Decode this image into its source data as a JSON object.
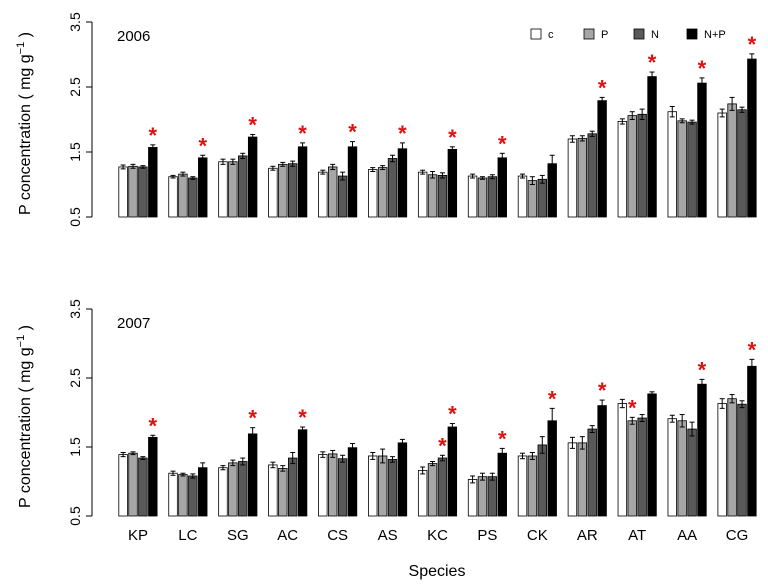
{
  "chart_data": {
    "type": "bar",
    "categories": [
      "KP",
      "LC",
      "SG",
      "AC",
      "CS",
      "AS",
      "KC",
      "PS",
      "CK",
      "AR",
      "AT",
      "AA",
      "CG"
    ],
    "xlabel": "Species",
    "ylabel_main": "P concentration ( mg g",
    "ylabel_sup": "−1",
    "ylabel_end": " )",
    "ylim": [
      0.5,
      3.5
    ],
    "yticks": [
      0.5,
      1.5,
      2.5,
      3.5
    ],
    "ytick_labels": [
      "0.5",
      "1.5",
      "2.5",
      "3.5"
    ],
    "legend": [
      {
        "name": "c",
        "color": "#ffffff"
      },
      {
        "name": "P",
        "color": "#a6a6a6"
      },
      {
        "name": "N",
        "color": "#595959"
      },
      {
        "name": "N+P",
        "color": "#000000"
      }
    ],
    "significance_marker": "*",
    "significance_color": "#e01010",
    "panels": [
      {
        "year": "2006",
        "show_legend": true,
        "series": [
          {
            "name": "c",
            "values": [
              1.27,
              1.12,
              1.35,
              1.25,
              1.19,
              1.23,
              1.19,
              1.13,
              1.13,
              1.7,
              1.97,
              2.12,
              2.1
            ],
            "errors": [
              0.03,
              0.02,
              0.04,
              0.03,
              0.03,
              0.03,
              0.03,
              0.03,
              0.03,
              0.05,
              0.04,
              0.08,
              0.06
            ],
            "sig": [
              false,
              false,
              false,
              false,
              false,
              false,
              false,
              false,
              false,
              false,
              false,
              false,
              false
            ]
          },
          {
            "name": "P",
            "values": [
              1.28,
              1.16,
              1.35,
              1.31,
              1.27,
              1.26,
              1.15,
              1.1,
              1.06,
              1.71,
              2.06,
              1.98,
              2.24
            ],
            "errors": [
              0.03,
              0.03,
              0.04,
              0.03,
              0.04,
              0.03,
              0.05,
              0.02,
              0.06,
              0.04,
              0.06,
              0.03,
              0.1
            ],
            "sig": [
              false,
              false,
              false,
              false,
              false,
              false,
              false,
              false,
              false,
              false,
              false,
              false,
              false
            ]
          },
          {
            "name": "N",
            "values": [
              1.27,
              1.1,
              1.44,
              1.32,
              1.13,
              1.4,
              1.14,
              1.12,
              1.08,
              1.78,
              2.08,
              1.96,
              2.15
            ],
            "errors": [
              0.02,
              0.02,
              0.04,
              0.04,
              0.06,
              0.05,
              0.04,
              0.03,
              0.06,
              0.04,
              0.08,
              0.03,
              0.04
            ],
            "sig": [
              false,
              false,
              false,
              false,
              false,
              false,
              false,
              false,
              false,
              false,
              false,
              false,
              false
            ]
          },
          {
            "name": "N+P",
            "values": [
              1.57,
              1.41,
              1.73,
              1.58,
              1.58,
              1.55,
              1.54,
              1.41,
              1.32,
              2.29,
              2.66,
              2.56,
              2.93
            ],
            "errors": [
              0.04,
              0.04,
              0.04,
              0.06,
              0.08,
              0.09,
              0.04,
              0.07,
              0.13,
              0.05,
              0.07,
              0.08,
              0.08
            ],
            "sig": [
              true,
              true,
              true,
              true,
              true,
              true,
              true,
              true,
              false,
              true,
              true,
              true,
              true
            ]
          }
        ]
      },
      {
        "year": "2007",
        "show_legend": false,
        "series": [
          {
            "name": "c",
            "values": [
              1.39,
              1.12,
              1.2,
              1.24,
              1.39,
              1.37,
              1.16,
              1.03,
              1.37,
              1.56,
              2.13,
              1.91,
              2.13
            ],
            "errors": [
              0.03,
              0.03,
              0.03,
              0.04,
              0.04,
              0.05,
              0.05,
              0.05,
              0.04,
              0.08,
              0.06,
              0.05,
              0.07
            ],
            "sig": [
              false,
              false,
              false,
              false,
              false,
              false,
              false,
              false,
              false,
              false,
              false,
              false,
              false
            ]
          },
          {
            "name": "P",
            "values": [
              1.41,
              1.1,
              1.27,
              1.19,
              1.4,
              1.37,
              1.26,
              1.07,
              1.37,
              1.56,
              1.88,
              1.88,
              2.2
            ],
            "errors": [
              0.02,
              0.02,
              0.04,
              0.04,
              0.05,
              0.1,
              0.03,
              0.05,
              0.05,
              0.09,
              0.05,
              0.09,
              0.06
            ],
            "sig": [
              false,
              false,
              false,
              false,
              false,
              false,
              false,
              false,
              false,
              false,
              true,
              false,
              false
            ]
          },
          {
            "name": "N",
            "values": [
              1.34,
              1.08,
              1.29,
              1.34,
              1.33,
              1.32,
              1.34,
              1.07,
              1.53,
              1.76,
              1.92,
              1.76,
              2.12
            ],
            "errors": [
              0.02,
              0.03,
              0.05,
              0.08,
              0.05,
              0.04,
              0.04,
              0.05,
              0.12,
              0.05,
              0.05,
              0.1,
              0.05
            ],
            "sig": [
              false,
              false,
              false,
              false,
              false,
              false,
              true,
              false,
              false,
              false,
              false,
              false,
              false
            ]
          },
          {
            "name": "N+P",
            "values": [
              1.64,
              1.2,
              1.69,
              1.75,
              1.49,
              1.56,
              1.79,
              1.41,
              1.88,
              2.1,
              2.27,
              2.41,
              2.67
            ],
            "errors": [
              0.03,
              0.07,
              0.09,
              0.04,
              0.06,
              0.05,
              0.05,
              0.07,
              0.18,
              0.08,
              0.03,
              0.07,
              0.1
            ],
            "sig": [
              true,
              false,
              true,
              true,
              false,
              false,
              true,
              true,
              true,
              true,
              false,
              true,
              true
            ]
          }
        ]
      }
    ]
  }
}
